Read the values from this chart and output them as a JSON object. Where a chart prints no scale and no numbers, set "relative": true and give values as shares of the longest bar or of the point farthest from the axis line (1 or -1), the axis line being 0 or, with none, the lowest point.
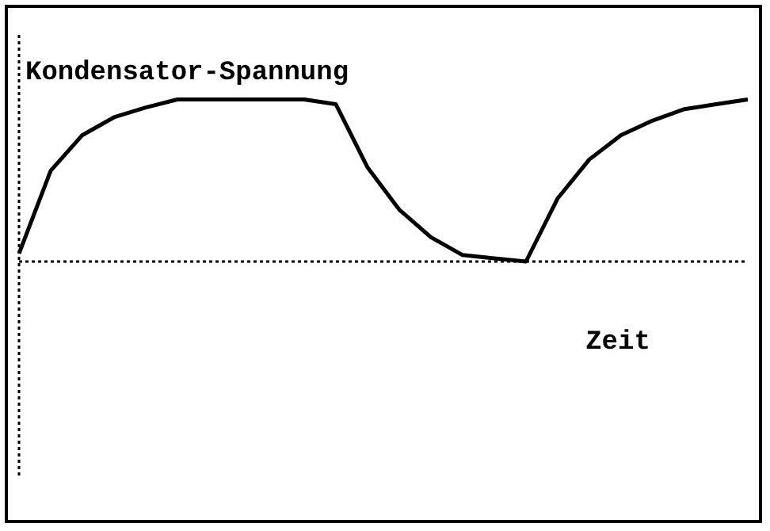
{
  "chart_data": {
    "type": "line",
    "relative": true,
    "ylabel": "Kondensator-Spannung",
    "xlabel": "Zeit",
    "legend": false,
    "grid": false,
    "marker": "none",
    "line_style": "solid",
    "categories": [
      null,
      null,
      null,
      null,
      null,
      null,
      null,
      null,
      null,
      null,
      null,
      null,
      null,
      null,
      null,
      null,
      null,
      null,
      null,
      null,
      null,
      null,
      null,
      null
    ],
    "series": [
      {
        "color": "#000000",
        "values": [
          0.05,
          0.56,
          0.78,
          0.89,
          0.95,
          1,
          1,
          1,
          1,
          1,
          0.97,
          0.58,
          0.32,
          0.15,
          0.04,
          0.02,
          0,
          0.39,
          0.63,
          0.78,
          0.87,
          0.94,
          0.97,
          1
        ]
      }
    ]
  }
}
